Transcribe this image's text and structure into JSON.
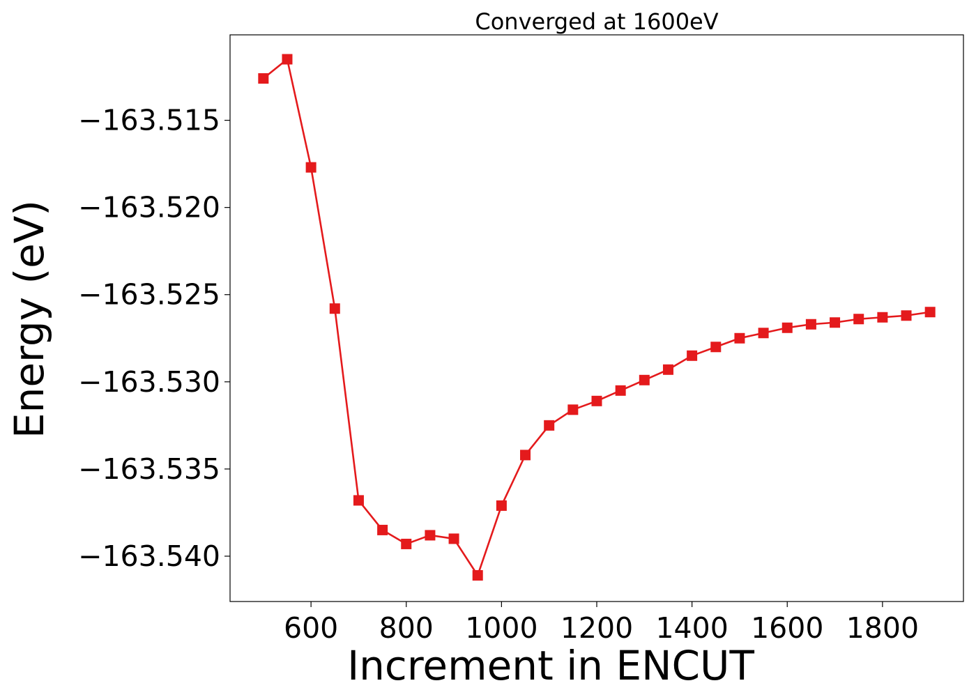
{
  "chart_data": {
    "type": "line",
    "title": "Converged at 1600eV",
    "xlabel": "Increment in ENCUT",
    "ylabel": "Energy (eV)",
    "xlim": [
      430,
      1970
    ],
    "ylim": [
      -163.5426,
      -163.5101
    ],
    "x_ticks": [
      600,
      800,
      1000,
      1200,
      1400,
      1600,
      1800
    ],
    "x_tick_labels": [
      "600",
      "800",
      "1000",
      "1200",
      "1400",
      "1600",
      "1800"
    ],
    "y_ticks": [
      -163.515,
      -163.52,
      -163.525,
      -163.53,
      -163.535,
      -163.54
    ],
    "y_tick_labels": [
      "−163.515",
      "−163.520",
      "−163.525",
      "−163.530",
      "−163.535",
      "−163.540"
    ],
    "grid": false,
    "marker": "square",
    "color": "#e41a1c",
    "series": [
      {
        "x": [
          500,
          550,
          600,
          650,
          700,
          750,
          800,
          850,
          900,
          950,
          1000,
          1050,
          1100,
          1150,
          1200,
          1250,
          1300,
          1350,
          1400,
          1450,
          1500,
          1550,
          1600,
          1650,
          1700,
          1750,
          1800,
          1850,
          1900
        ],
        "y": [
          -163.5126,
          -163.5115,
          -163.5177,
          -163.5258,
          -163.5368,
          -163.5385,
          -163.5393,
          -163.5388,
          -163.539,
          -163.5411,
          -163.5371,
          -163.5342,
          -163.5325,
          -163.5316,
          -163.5311,
          -163.5305,
          -163.5299,
          -163.5293,
          -163.5285,
          -163.528,
          -163.5275,
          -163.5272,
          -163.5269,
          -163.5267,
          -163.5266,
          -163.5264,
          -163.5263,
          -163.5262,
          -163.526
        ]
      }
    ]
  }
}
